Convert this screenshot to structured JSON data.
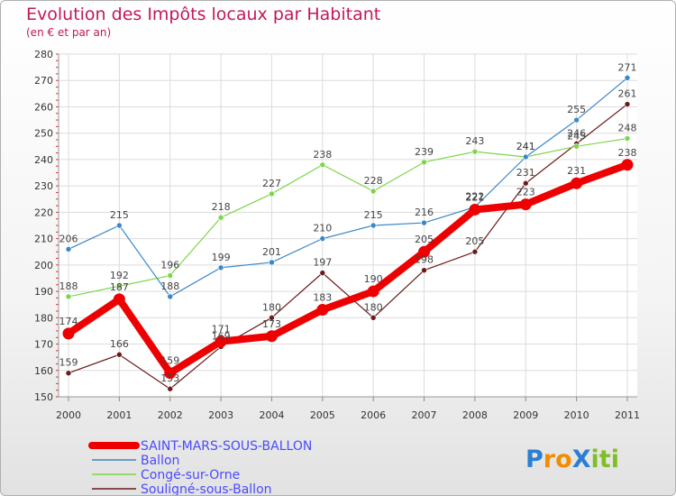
{
  "title": "Evolution des Impôts locaux par Habitant",
  "subtitle": "(en € et par an)",
  "logo": {
    "text": "ProXiti",
    "letters": [
      "P",
      "r",
      "o",
      "X",
      "i",
      "t",
      "i"
    ],
    "colors": [
      "#2a7fd4",
      "#f28c00",
      "#f28c00",
      "#2a7fd4",
      "#7fbf24",
      "#7fbf24",
      "#7fbf24"
    ]
  },
  "chart_data": {
    "type": "line",
    "title": "Evolution des Impôts locaux par Habitant",
    "subtitle": "(en € et par an)",
    "xlabel": "",
    "ylabel": "",
    "x": [
      "2000",
      "2001",
      "2002",
      "2003",
      "2004",
      "2005",
      "2006",
      "2007",
      "2008",
      "2009",
      "2010",
      "2011"
    ],
    "ylim": [
      150,
      280
    ],
    "yticks": [
      "150",
      "160",
      "170",
      "180",
      "190",
      "200",
      "210",
      "220",
      "230",
      "240",
      "250",
      "260",
      "270",
      "280"
    ],
    "grid": true,
    "legend": "bottom-left",
    "series": [
      {
        "name": "SAINT-MARS-SOUS-BALLON",
        "color": "#ee0000",
        "values": [
          174,
          187,
          159,
          171,
          173,
          183,
          190,
          205,
          221,
          223,
          231,
          238
        ],
        "labels": [
          "174",
          "187",
          "159",
          "171",
          "173",
          "183",
          "190",
          "205",
          "221",
          "223",
          "231",
          "238"
        ]
      },
      {
        "name": "Ballon",
        "color": "#3a87c8",
        "values": [
          206,
          215,
          188,
          199,
          201,
          210,
          215,
          216,
          222,
          241,
          255,
          271
        ],
        "labels": [
          "206",
          "215",
          "188",
          "199",
          "201",
          "210",
          "215",
          "216",
          "222",
          "241",
          "255",
          "271"
        ]
      },
      {
        "name": "Congé-sur-Orne",
        "color": "#7cd64a",
        "values": [
          188,
          192,
          196,
          218,
          227,
          238,
          228,
          239,
          243,
          241,
          245,
          248
        ],
        "labels": [
          "188",
          "192",
          "196",
          "218",
          "227",
          "238",
          "228",
          "239",
          "243",
          "241",
          "245",
          "248"
        ]
      },
      {
        "name": "Souligné-sous-Ballon",
        "color": "#6b1a1a",
        "values": [
          159,
          166,
          153,
          169,
          180,
          197,
          180,
          198,
          205,
          231,
          246,
          261
        ],
        "labels": [
          "159",
          "166",
          "153",
          "169",
          "180",
          "197",
          "180",
          "198",
          "205",
          "231",
          "246",
          "261"
        ]
      }
    ]
  }
}
